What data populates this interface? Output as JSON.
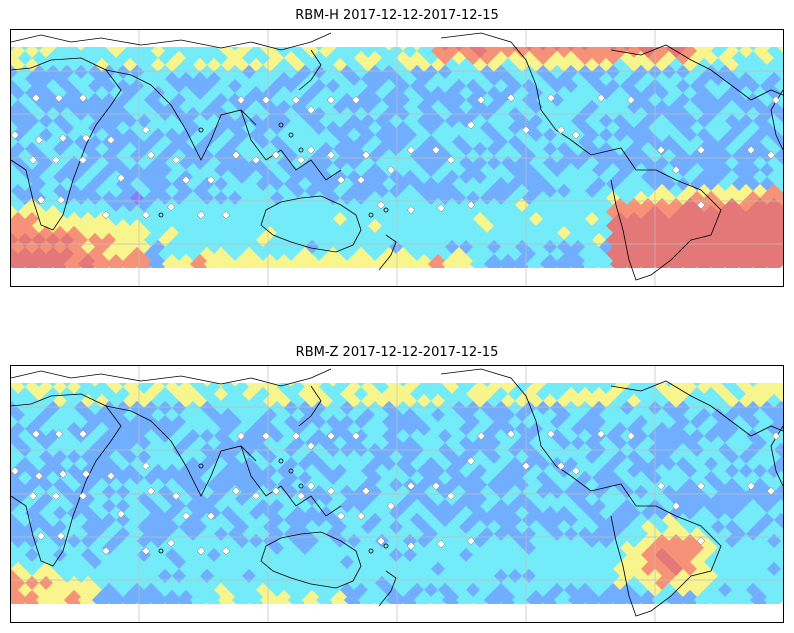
{
  "panels": [
    {
      "title": "RBM-H 2017-12-12-2017-12-15",
      "variant": "high"
    },
    {
      "title": "RBM-Z 2017-12-12-2017-12-15",
      "variant": "low"
    }
  ],
  "colors": {
    "low": "#6a6af8",
    "mid_low": "#5aa0ff",
    "mid": "#5ce8f8",
    "mid_high": "#f6f478",
    "high": "#f48060",
    "very_high": "#e06060",
    "coast": "#000000",
    "grid": "#bfbfbf",
    "station": "#ffffff"
  },
  "icons": [
    "station-marker-icon"
  ]
}
